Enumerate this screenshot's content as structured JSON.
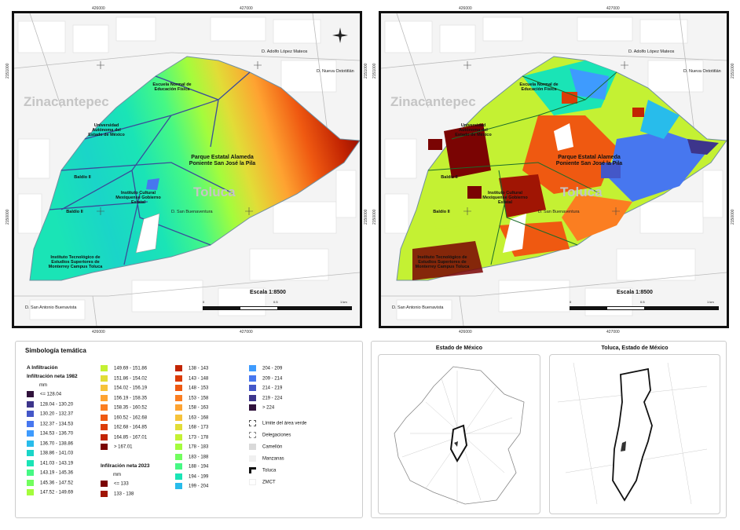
{
  "maps": [
    {
      "coords": {
        "top": [
          "426000",
          "427000"
        ],
        "bottom": [
          "426000",
          "427000"
        ],
        "left": [
          "2150000",
          "2151000"
        ],
        "right": [
          "2150000",
          "2151000"
        ]
      },
      "towns": [
        "Zinacantepec",
        "Toluca"
      ],
      "streets": {
        "adolfo": "D. Adolfo López Mateos",
        "oxtotitlan": "D. Nueva Oxtotitlán",
        "buenaventura": "D. San Buenaventura",
        "antonio": "D. San Antonio Buenavista"
      },
      "places": {
        "normal": "Escuela Normal de Educación Física",
        "uaem": "Universidad Autónoma del Estado de México",
        "baldio2a": "Baldío II",
        "baldio2b": "Baldío II",
        "icm": "Instituto Cultural Mexiquense Gobierno Estatal",
        "itesm": "Instituto Tecnológico de Estudios Superiores de Monterrey Campus Toluca"
      },
      "park": "Parque Estatal Alameda Poniente San José la Pila",
      "scale": {
        "label": "Escala 1:8500",
        "ticks": [
          "0",
          "0.5",
          "1 km"
        ]
      }
    },
    {
      "coords": {
        "top": [
          "426000",
          "427000"
        ],
        "bottom": [
          "426000",
          "427000"
        ],
        "left": [
          "2150000",
          "2151000"
        ],
        "right": [
          "2150000",
          "2151000"
        ]
      },
      "towns": [
        "Zinacantepec",
        "Toluca"
      ],
      "streets": {
        "adolfo": "D. Adolfo López Mateos",
        "oxtotitlan": "D. Nueva Oxtotitlán",
        "buenaventura": "D. San Buenaventura",
        "antonio": "D. San Antonio Buenavista"
      },
      "places": {
        "normal": "Escuela Normal de Educación Física",
        "uaem": "Universidad Autónoma del Estado de México",
        "baldio2a": "Baldío II",
        "baldio2b": "Baldío II",
        "icm": "Instituto Cultural Mexiquense Gobierno Estatal",
        "itesm": "Instituto Tecnológico de Estudios Superiores de Monterrey Campus Toluca"
      },
      "park": "Parque Estatal Alameda Poniente San José la Pila",
      "scale": {
        "label": "Escala 1:8500",
        "ticks": [
          "0",
          "0.5",
          "1 km"
        ]
      }
    }
  ],
  "legend": {
    "title": "Simbología temática",
    "group1": "A Infiltración",
    "sub1982": "Infiltración neta 1982",
    "mm1": "mm",
    "sub2023": "Infilración neta 2023",
    "mm2": "mm",
    "col1": [
      {
        "label": "<= 128.04",
        "color": "#30123b"
      },
      {
        "label": "128.04 - 130.20",
        "color": "#3d358b"
      },
      {
        "label": "130.20 - 132.37",
        "color": "#4457c8"
      },
      {
        "label": "132.37 - 134.53",
        "color": "#4777ef"
      },
      {
        "label": "134.53 - 136.70",
        "color": "#3e9bfe"
      },
      {
        "label": "136.70 - 138.86",
        "color": "#28bceb"
      },
      {
        "label": "138.86 - 141.03",
        "color": "#1ad5c8"
      },
      {
        "label": "141.03 - 143.19",
        "color": "#1ae4b6"
      },
      {
        "label": "143.19 - 145.36",
        "color": "#46f884"
      },
      {
        "label": "145.36 - 147.52",
        "color": "#72fe5e"
      },
      {
        "label": "147.52 - 149.69",
        "color": "#a4fc3c"
      }
    ],
    "col2a": [
      {
        "label": "149.69 - 151.86",
        "color": "#c4f133"
      },
      {
        "label": "151.86 - 154.02",
        "color": "#e1dd37"
      },
      {
        "label": "154.02 - 156.19",
        "color": "#f6c33a"
      },
      {
        "label": "156.19 - 158.35",
        "color": "#fea331"
      },
      {
        "label": "158.35 - 160.52",
        "color": "#fb7e21"
      },
      {
        "label": "160.52 - 162.68",
        "color": "#ef5911"
      },
      {
        "label": "162.68 - 164.85",
        "color": "#dc3c07"
      },
      {
        "label": "164.85 - 167.01",
        "color": "#c22402"
      },
      {
        "label": "> 167.01",
        "color": "#7a0403"
      }
    ],
    "col2b": [
      {
        "label": "<= 133",
        "color": "#7a0403"
      },
      {
        "label": "133 - 138",
        "color": "#a01504"
      }
    ],
    "col3": [
      {
        "label": "138 - 143",
        "color": "#c22402"
      },
      {
        "label": "143 - 148",
        "color": "#dc3c07"
      },
      {
        "label": "148 - 153",
        "color": "#ef5911"
      },
      {
        "label": "153 - 158",
        "color": "#fb7e21"
      },
      {
        "label": "158 - 163",
        "color": "#fea331"
      },
      {
        "label": "163 - 168",
        "color": "#f6c33a"
      },
      {
        "label": "168 - 173",
        "color": "#e1dd37"
      },
      {
        "label": "173 - 178",
        "color": "#c4f133"
      },
      {
        "label": "178 - 183",
        "color": "#a4fc3c"
      },
      {
        "label": "183 - 188",
        "color": "#72fe5e"
      },
      {
        "label": "188 - 194",
        "color": "#46f884"
      },
      {
        "label": "194 - 199",
        "color": "#1ae4b6"
      },
      {
        "label": "199 - 204",
        "color": "#28bceb"
      }
    ],
    "col4": [
      {
        "label": "204 - 209",
        "color": "#3e9bfe"
      },
      {
        "label": "209 - 214",
        "color": "#4777ef"
      },
      {
        "label": "214 - 219",
        "color": "#4457c8"
      },
      {
        "label": "219 - 224",
        "color": "#3d358b"
      },
      {
        "label": "> 224",
        "color": "#30123b"
      }
    ],
    "symbols": [
      "Límite del área verde",
      "Delegaciones",
      "Camellón",
      "Manzanas",
      "Toluca",
      "ZMCT"
    ]
  },
  "insets": {
    "left": "Estado de México",
    "right": "Toluca, Estado de México"
  }
}
